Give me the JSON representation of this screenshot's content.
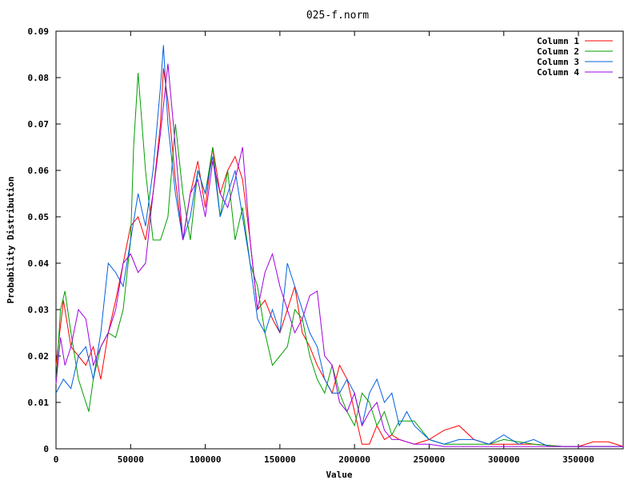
{
  "chart_data": {
    "type": "line",
    "title": "025-f.norm",
    "xlabel": "Value",
    "ylabel": "Probability Distribution",
    "xlim": [
      0,
      380000
    ],
    "ylim": [
      0,
      0.09
    ],
    "x_ticks": [
      0,
      50000,
      100000,
      150000,
      200000,
      250000,
      300000,
      350000
    ],
    "y_ticks": [
      0,
      0.01,
      0.02,
      0.03,
      0.04,
      0.05,
      0.06,
      0.07,
      0.08,
      0.09
    ],
    "x_tick_labels": [
      "0",
      "50000",
      "100000",
      "150000",
      "200000",
      "250000",
      "300000",
      "350000"
    ],
    "y_tick_labels": [
      "0",
      "0.01",
      "0.02",
      "0.03",
      "0.04",
      "0.05",
      "0.06",
      "0.07",
      "0.08",
      "0.09"
    ],
    "grid": false,
    "legend_position": "top-right",
    "series": [
      {
        "name": "Column 1",
        "color": "#ff0000",
        "x": [
          0,
          5000,
          10000,
          15000,
          20000,
          25000,
          30000,
          35000,
          40000,
          45000,
          50000,
          55000,
          60000,
          65000,
          70000,
          72000,
          75000,
          80000,
          85000,
          90000,
          95000,
          100000,
          105000,
          110000,
          115000,
          120000,
          125000,
          130000,
          135000,
          140000,
          145000,
          150000,
          155000,
          160000,
          165000,
          170000,
          175000,
          180000,
          185000,
          190000,
          195000,
          200000,
          205000,
          210000,
          215000,
          220000,
          225000,
          230000,
          240000,
          250000,
          260000,
          270000,
          280000,
          290000,
          300000,
          320000,
          340000,
          350000,
          360000,
          370000,
          380000
        ],
        "y": [
          0.018,
          0.032,
          0.022,
          0.02,
          0.018,
          0.022,
          0.015,
          0.025,
          0.032,
          0.04,
          0.048,
          0.05,
          0.045,
          0.055,
          0.07,
          0.082,
          0.075,
          0.058,
          0.045,
          0.055,
          0.062,
          0.052,
          0.065,
          0.055,
          0.06,
          0.063,
          0.058,
          0.045,
          0.03,
          0.032,
          0.028,
          0.025,
          0.03,
          0.035,
          0.025,
          0.022,
          0.018,
          0.015,
          0.012,
          0.018,
          0.015,
          0.008,
          0.001,
          0.001,
          0.005,
          0.002,
          0.003,
          0.002,
          0.001,
          0.002,
          0.004,
          0.005,
          0.002,
          0.001,
          0.001,
          0.001,
          0.0005,
          0.0005,
          0.0015,
          0.0015,
          0.0005
        ]
      },
      {
        "name": "Column 2",
        "color": "#00a000",
        "x": [
          0,
          3000,
          6000,
          10000,
          15000,
          20000,
          22000,
          25000,
          30000,
          35000,
          40000,
          45000,
          50000,
          52000,
          55000,
          60000,
          65000,
          70000,
          75000,
          80000,
          85000,
          90000,
          95000,
          100000,
          105000,
          110000,
          115000,
          120000,
          125000,
          130000,
          135000,
          140000,
          145000,
          150000,
          155000,
          160000,
          165000,
          170000,
          175000,
          180000,
          185000,
          190000,
          195000,
          200000,
          205000,
          210000,
          215000,
          220000,
          225000,
          230000,
          240000,
          250000,
          260000,
          270000,
          280000,
          290000,
          300000,
          320000,
          340000,
          360000,
          380000
        ],
        "y": [
          0.014,
          0.03,
          0.034,
          0.025,
          0.015,
          0.01,
          0.008,
          0.015,
          0.022,
          0.025,
          0.024,
          0.03,
          0.045,
          0.065,
          0.081,
          0.06,
          0.045,
          0.045,
          0.05,
          0.07,
          0.055,
          0.045,
          0.06,
          0.055,
          0.065,
          0.05,
          0.06,
          0.045,
          0.052,
          0.04,
          0.035,
          0.025,
          0.018,
          0.02,
          0.022,
          0.03,
          0.028,
          0.02,
          0.015,
          0.012,
          0.018,
          0.012,
          0.008,
          0.005,
          0.012,
          0.01,
          0.005,
          0.008,
          0.003,
          0.006,
          0.006,
          0.002,
          0.001,
          0.001,
          0.001,
          0.001,
          0.002,
          0.001,
          0.0005,
          0.0005,
          0.0005
        ]
      },
      {
        "name": "Column 3",
        "color": "#0060e0",
        "x": [
          0,
          5000,
          10000,
          15000,
          20000,
          25000,
          30000,
          35000,
          40000,
          45000,
          50000,
          55000,
          60000,
          65000,
          70000,
          72000,
          75000,
          80000,
          85000,
          90000,
          95000,
          100000,
          105000,
          110000,
          115000,
          120000,
          125000,
          130000,
          135000,
          140000,
          145000,
          150000,
          155000,
          160000,
          165000,
          170000,
          175000,
          180000,
          185000,
          190000,
          195000,
          200000,
          205000,
          210000,
          215000,
          220000,
          225000,
          230000,
          235000,
          240000,
          250000,
          260000,
          270000,
          280000,
          290000,
          300000,
          310000,
          320000,
          330000,
          350000,
          380000
        ],
        "y": [
          0.012,
          0.015,
          0.013,
          0.02,
          0.022,
          0.015,
          0.025,
          0.04,
          0.038,
          0.035,
          0.045,
          0.055,
          0.048,
          0.06,
          0.078,
          0.087,
          0.07,
          0.055,
          0.045,
          0.05,
          0.06,
          0.055,
          0.063,
          0.05,
          0.055,
          0.06,
          0.05,
          0.04,
          0.028,
          0.025,
          0.03,
          0.025,
          0.04,
          0.035,
          0.03,
          0.025,
          0.022,
          0.015,
          0.012,
          0.012,
          0.015,
          0.012,
          0.005,
          0.012,
          0.015,
          0.01,
          0.012,
          0.005,
          0.008,
          0.005,
          0.002,
          0.001,
          0.002,
          0.002,
          0.001,
          0.003,
          0.001,
          0.002,
          0.0005,
          0.0005,
          0.0005
        ]
      },
      {
        "name": "Column 4",
        "color": "#a000e0",
        "x": [
          0,
          3000,
          6000,
          10000,
          15000,
          20000,
          25000,
          30000,
          35000,
          40000,
          45000,
          50000,
          55000,
          60000,
          65000,
          70000,
          75000,
          80000,
          85000,
          90000,
          95000,
          100000,
          105000,
          110000,
          115000,
          120000,
          125000,
          130000,
          135000,
          140000,
          145000,
          150000,
          155000,
          160000,
          165000,
          170000,
          175000,
          180000,
          185000,
          190000,
          195000,
          200000,
          205000,
          210000,
          215000,
          220000,
          225000,
          230000,
          240000,
          250000,
          260000,
          270000,
          280000,
          290000,
          300000,
          320000,
          340000,
          360000,
          380000
        ],
        "y": [
          0.014,
          0.024,
          0.018,
          0.022,
          0.03,
          0.028,
          0.018,
          0.022,
          0.025,
          0.03,
          0.04,
          0.042,
          0.038,
          0.04,
          0.055,
          0.068,
          0.083,
          0.065,
          0.045,
          0.055,
          0.058,
          0.05,
          0.062,
          0.055,
          0.052,
          0.058,
          0.065,
          0.045,
          0.03,
          0.038,
          0.042,
          0.035,
          0.03,
          0.025,
          0.028,
          0.033,
          0.034,
          0.02,
          0.018,
          0.01,
          0.008,
          0.012,
          0.005,
          0.008,
          0.01,
          0.004,
          0.002,
          0.002,
          0.001,
          0.001,
          0.0005,
          0.0005,
          0.0005,
          0.0005,
          0.0005,
          0.0005,
          0.0005,
          0.0005,
          0.0005
        ]
      }
    ]
  }
}
